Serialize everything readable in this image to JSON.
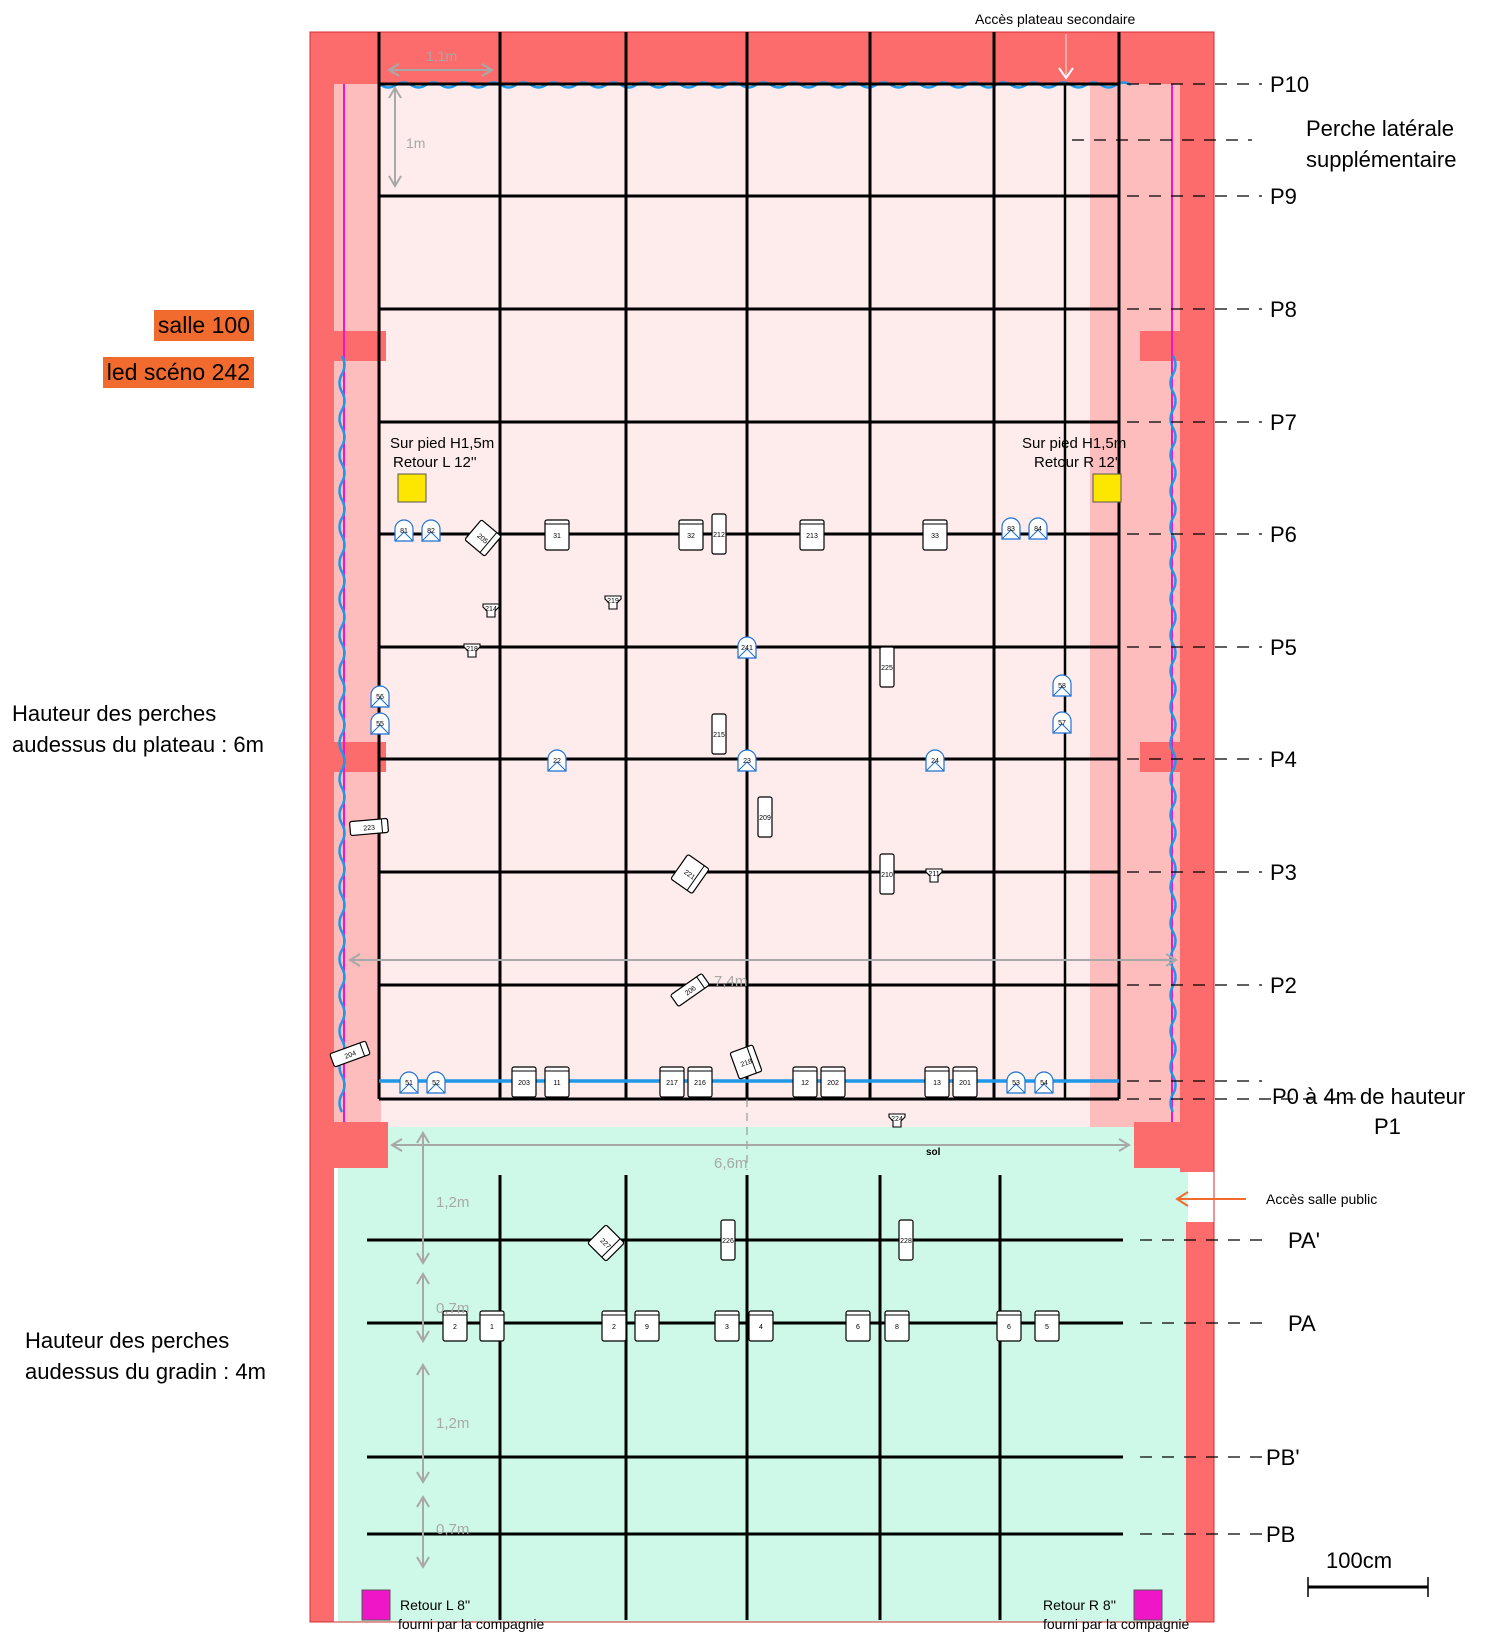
{
  "side_labels": {
    "salle": "salle 100",
    "led": "led scéno 242",
    "hauteur_plateau": [
      "Hauteur des perches",
      "audessus du plateau : 6m"
    ],
    "hauteur_gradin": [
      "Hauteur des perches",
      "audessus du gradin : 4m"
    ]
  },
  "top_note": "Accès plateau secondaire",
  "public_access": "Accès salle public",
  "lateral_pipe": [
    "Perche latérale",
    "supplémentaire"
  ],
  "stage_pipes": [
    "P10",
    "P9",
    "P8",
    "P7",
    "P6",
    "P5",
    "P4",
    "P3",
    "P2"
  ],
  "p0": "P0 à 4m de hauteur",
  "p1": "P1",
  "house_pipes": [
    "PA'",
    "PA",
    "PB'",
    "PB"
  ],
  "dimensions": {
    "grid_spacing_h": "1,1m",
    "grid_spacing_v": "1m",
    "stage_width": "7,4m",
    "opening_width": "6,6m",
    "house_gap_1": "1,2m",
    "house_gap_2": "0,7m",
    "house_gap_3": "1,2m",
    "house_gap_4": "0,7m"
  },
  "scale": "100cm",
  "returns_stage": {
    "left": [
      "Sur pied H1,5m",
      "Retour L 12''"
    ],
    "right": [
      "Sur pied  H1,5m",
      "Retour  R 12''"
    ]
  },
  "returns_house": {
    "left": [
      "Retour L 8''",
      "fourni par la compagnie"
    ],
    "right": [
      "Retour R 8''",
      "fourni par la compagnie"
    ]
  },
  "floor_label": "sol",
  "colors": {
    "wall": "#fd6c6c",
    "stage": "#fdeceb",
    "wings": "#fdbdbd",
    "house": "#cef9e9",
    "curtain": "#1f98e8",
    "return_stage": "#fde700",
    "return_house": "#ef16c8",
    "salle_tag": "#f26b2e"
  },
  "fixtures": {
    "par": [
      "81",
      "82",
      "83",
      "84",
      "56",
      "55",
      "58",
      "57",
      "241",
      "22",
      "23",
      "24",
      "51",
      "52",
      "53",
      "54"
    ],
    "box": [
      "31",
      "32",
      "213",
      "33",
      "203",
      "11",
      "217",
      "216",
      "12",
      "202",
      "13",
      "201",
      "2",
      "1",
      "2",
      "9",
      "3",
      "4",
      "6",
      "8",
      "6",
      "5"
    ],
    "slim": [
      "212",
      "225",
      "215",
      "209",
      "210",
      "226",
      "228"
    ],
    "tilted": [
      "205",
      "223",
      "221",
      "206",
      "204",
      "218",
      "227"
    ],
    "cup": [
      "214",
      "219",
      "218",
      "211",
      "224"
    ]
  }
}
